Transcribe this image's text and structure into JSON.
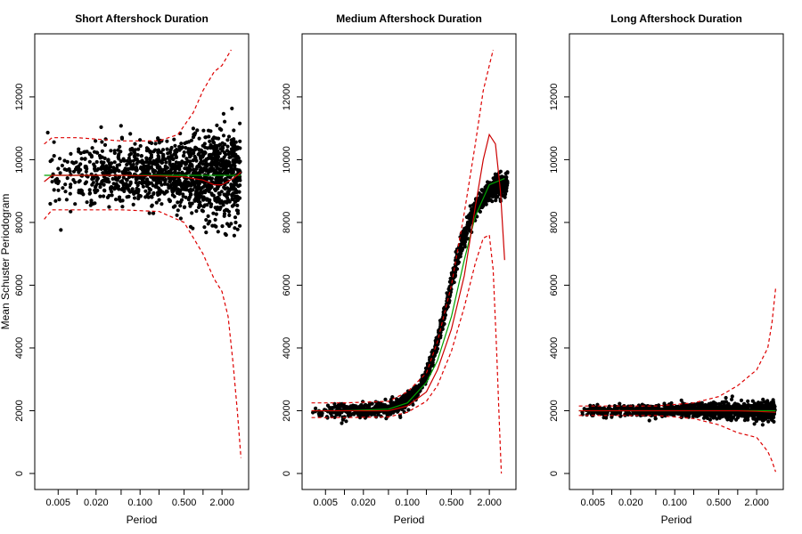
{
  "colors": {
    "points": "#000000",
    "fit_line": "#00a000",
    "mean_line": "#cc0000",
    "bounds": "#dd0000",
    "background": "#ffffff"
  },
  "shared": {
    "ylabel": "Mean Schuster Periodogram",
    "xlabel": "Period"
  },
  "chart_data": [
    {
      "type": "scatter",
      "title": "Short Aftershock Duration",
      "xlabel": "Period",
      "ylabel": "Mean Schuster Periodogram",
      "xscale": "log",
      "xlim": [
        0.0025,
        4.5
      ],
      "ylim": [
        0,
        13500
      ],
      "xticks": [
        0.005,
        0.02,
        0.1,
        0.5,
        2.0
      ],
      "xtick_labels": [
        "0.005",
        "0.020",
        "0.100",
        "0.500",
        "2.000"
      ],
      "yticks": [
        0,
        2000,
        4000,
        6000,
        8000,
        10000,
        12000
      ],
      "ytick_labels": [
        "0",
        "2000",
        "4000",
        "6000",
        "8000",
        "10000",
        "12000"
      ],
      "scatter_model": {
        "baseline": 9500,
        "amplitude": 0,
        "midpoint": 0.5,
        "spread": 0.9,
        "noise": 500
      },
      "series": [
        {
          "name": "fit",
          "style": "green-line",
          "x": [
            0.003,
            0.01,
            0.05,
            0.2,
            1.0,
            2.0,
            4.0
          ],
          "y": [
            9500,
            9500,
            9500,
            9500,
            9500,
            9500,
            9500
          ]
        },
        {
          "name": "mean",
          "style": "red-solid",
          "x": [
            0.003,
            0.004,
            0.01,
            0.05,
            0.2,
            0.5,
            1.0,
            1.5,
            2.0,
            3.0,
            4.0
          ],
          "y": [
            9300,
            9500,
            9500,
            9500,
            9480,
            9450,
            9350,
            9200,
            9200,
            9400,
            9600
          ]
        },
        {
          "name": "upper-bound",
          "style": "red-dashed",
          "x": [
            0.003,
            0.004,
            0.01,
            0.05,
            0.2,
            0.4,
            0.7,
            1.0,
            1.5,
            2.0,
            2.8
          ],
          "y": [
            10500,
            10700,
            10700,
            10600,
            10600,
            10800,
            11500,
            12200,
            12800,
            13000,
            13500
          ]
        },
        {
          "name": "lower-bound",
          "style": "red-dashed",
          "x": [
            0.003,
            0.004,
            0.01,
            0.05,
            0.2,
            0.5,
            1.0,
            1.5,
            2.0,
            2.5,
            3.0,
            3.5,
            4.0
          ],
          "y": [
            8100,
            8400,
            8400,
            8400,
            8350,
            8000,
            7000,
            6200,
            5800,
            5000,
            3500,
            2000,
            500
          ]
        }
      ]
    },
    {
      "type": "scatter",
      "title": "Medium Aftershock Duration",
      "xlabel": "Period",
      "ylabel": "",
      "xscale": "log",
      "xlim": [
        0.0025,
        4.5
      ],
      "ylim": [
        0,
        13500
      ],
      "xticks": [
        0.005,
        0.02,
        0.1,
        0.5,
        2.0
      ],
      "xtick_labels": [
        "0.005",
        "0.020",
        "0.100",
        "0.500",
        "2.000"
      ],
      "yticks": [
        0,
        2000,
        4000,
        6000,
        8000,
        10000,
        12000
      ],
      "ytick_labels": [
        "0",
        "2000",
        "4000",
        "6000",
        "8000",
        "10000",
        "12000"
      ],
      "scatter_model": {
        "baseline": 2000,
        "amplitude": 7300,
        "midpoint": 0.45,
        "spread": 0.85,
        "noise": 120
      },
      "series": [
        {
          "name": "fit",
          "style": "green-line",
          "x": [
            0.003,
            0.01,
            0.05,
            0.1,
            0.2,
            0.3,
            0.5,
            0.8,
            1.2,
            2.0,
            3.5
          ],
          "y": [
            2000,
            2000,
            2050,
            2250,
            2900,
            3600,
            5000,
            6800,
            8200,
            9200,
            9400
          ]
        },
        {
          "name": "mean",
          "style": "red-solid",
          "x": [
            0.003,
            0.01,
            0.05,
            0.1,
            0.2,
            0.3,
            0.5,
            0.8,
            1.2,
            1.6,
            2.0,
            2.5,
            3.0,
            3.5
          ],
          "y": [
            2000,
            2000,
            2000,
            2150,
            2600,
            3300,
            4600,
            6300,
            8500,
            10000,
            10800,
            10500,
            9000,
            6800
          ]
        },
        {
          "name": "upper-bound",
          "style": "red-dashed",
          "x": [
            0.003,
            0.01,
            0.05,
            0.1,
            0.2,
            0.3,
            0.5,
            0.8,
            1.2,
            1.6,
            2.0,
            2.3
          ],
          "y": [
            2250,
            2250,
            2300,
            2600,
            3200,
            4200,
            6000,
            8300,
            10500,
            12200,
            13000,
            13500
          ]
        },
        {
          "name": "lower-bound",
          "style": "red-dashed",
          "x": [
            0.003,
            0.01,
            0.05,
            0.1,
            0.2,
            0.3,
            0.5,
            0.8,
            1.2,
            1.6,
            2.0,
            2.3,
            2.6,
            2.9,
            3.1
          ],
          "y": [
            1780,
            1780,
            1800,
            1950,
            2300,
            2800,
            3900,
            5300,
            6700,
            7500,
            7600,
            6500,
            4000,
            1500,
            0
          ]
        }
      ]
    },
    {
      "type": "scatter",
      "title": "Long Aftershock Duration",
      "xlabel": "Period",
      "ylabel": "",
      "xscale": "log",
      "xlim": [
        0.0025,
        4.5
      ],
      "ylim": [
        0,
        13500
      ],
      "xticks": [
        0.005,
        0.02,
        0.1,
        0.5,
        2.0
      ],
      "xtick_labels": [
        "0.005",
        "0.020",
        "0.100",
        "0.500",
        "2.000"
      ],
      "yticks": [
        0,
        2000,
        4000,
        6000,
        8000,
        10000,
        12000
      ],
      "ytick_labels": [
        "0",
        "2000",
        "4000",
        "6000",
        "8000",
        "10000",
        "12000"
      ],
      "scatter_model": {
        "baseline": 2000,
        "amplitude": 0,
        "midpoint": 0.5,
        "spread": 0.9,
        "noise": 100
      },
      "series": [
        {
          "name": "fit",
          "style": "green-line",
          "x": [
            0.003,
            0.01,
            0.1,
            1.0,
            4.0
          ],
          "y": [
            2000,
            2000,
            2000,
            2000,
            2000
          ]
        },
        {
          "name": "mean",
          "style": "red-solid",
          "x": [
            0.003,
            0.01,
            0.1,
            1.0,
            2.0,
            4.0
          ],
          "y": [
            2000,
            2000,
            2000,
            2000,
            1980,
            1950
          ]
        },
        {
          "name": "upper-bound",
          "style": "red-dashed",
          "x": [
            0.003,
            0.01,
            0.05,
            0.2,
            0.5,
            1.0,
            2.0,
            3.0,
            3.5,
            4.0
          ],
          "y": [
            2150,
            2150,
            2150,
            2250,
            2450,
            2800,
            3300,
            4000,
            4800,
            5900
          ]
        },
        {
          "name": "lower-bound",
          "style": "red-dashed",
          "x": [
            0.003,
            0.01,
            0.05,
            0.2,
            0.5,
            1.0,
            2.0,
            3.0,
            3.5,
            4.0
          ],
          "y": [
            1850,
            1850,
            1850,
            1750,
            1550,
            1300,
            1150,
            700,
            400,
            50
          ]
        }
      ]
    }
  ]
}
